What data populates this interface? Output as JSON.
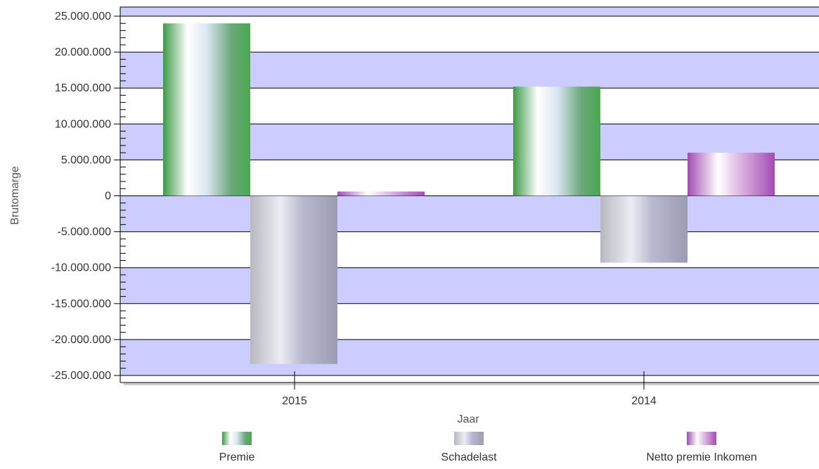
{
  "chart_data": {
    "type": "bar",
    "categories": [
      "2015",
      "2014"
    ],
    "series": [
      {
        "name": "Premie",
        "values": [
          24000000,
          15200000
        ],
        "color": "#5aaa5a"
      },
      {
        "name": "Schadelast",
        "values": [
          -23400000,
          -9300000
        ],
        "color": "#a0a0a8"
      },
      {
        "name": "Netto premie Inkomen",
        "values": [
          600000,
          6000000
        ],
        "color": "#a050b0"
      }
    ],
    "xlabel": "Jaar",
    "ylabel": "Brutomarge",
    "ylim": [
      -25000000,
      25000000
    ],
    "yticks": [
      "25.000.000",
      "20.000.000",
      "15.000.000",
      "10.000.000",
      "5.000.000",
      "0",
      "-5.000.000",
      "-10.000.000",
      "-15.000.000",
      "-20.000.000",
      "-25.000.000"
    ],
    "ytick_values": [
      25000000,
      20000000,
      15000000,
      10000000,
      5000000,
      0,
      -5000000,
      -10000000,
      -15000000,
      -20000000,
      -25000000
    ],
    "grid": true,
    "band_color": "#ccccff",
    "legend_position": "bottom"
  }
}
